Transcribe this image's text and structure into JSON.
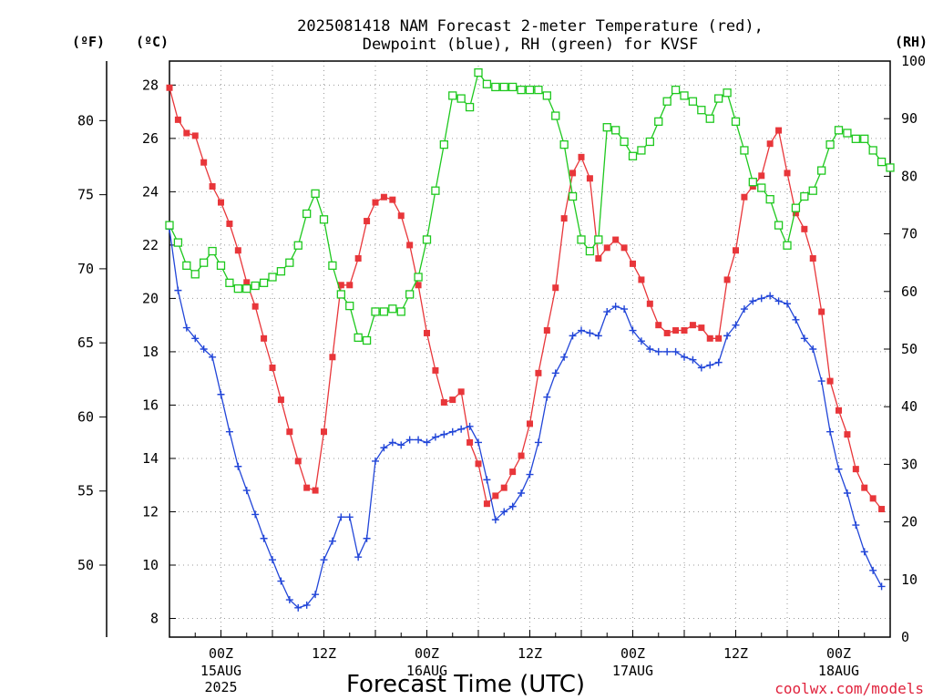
{
  "chart_data": {
    "type": "line",
    "title": "2025081418 NAM Forecast 2-meter Temperature (red),",
    "subtitle": "Dewpoint (blue), RH (green) for KVSF",
    "xlabel": "Forecast Time (UTC)",
    "credit": "coolwx.com/models",
    "units": {
      "fahrenheit": "(ºF)",
      "celsius": "(ºC)",
      "rh": "(RH)"
    },
    "x_range_hours_after_start": [
      0,
      84
    ],
    "x_start": "2025-08-14 18Z",
    "y_celsius_range": [
      7.3,
      28.9
    ],
    "y_rh_range": [
      0,
      100
    ],
    "grid": true,
    "celsius_ticks": [
      8,
      10,
      12,
      14,
      16,
      18,
      20,
      22,
      24,
      26,
      28
    ],
    "fahrenheit_ticks": [
      50,
      55,
      60,
      65,
      70,
      75,
      80
    ],
    "rh_ticks": [
      0,
      10,
      20,
      30,
      40,
      50,
      60,
      70,
      80,
      90,
      100
    ],
    "x_ticks": [
      {
        "hour": 6,
        "label": "00Z",
        "sub": [
          "15AUG",
          "2025"
        ]
      },
      {
        "hour": 18,
        "label": "12Z",
        "sub": []
      },
      {
        "hour": 30,
        "label": "00Z",
        "sub": [
          "16AUG"
        ]
      },
      {
        "hour": 42,
        "label": "12Z",
        "sub": []
      },
      {
        "hour": 54,
        "label": "00Z",
        "sub": [
          "17AUG"
        ]
      },
      {
        "hour": 66,
        "label": "12Z",
        "sub": []
      },
      {
        "hour": 78,
        "label": "00Z",
        "sub": [
          "18AUG"
        ]
      }
    ],
    "series": [
      {
        "key": "temperature",
        "axis": "celsius",
        "color": "#e8363a",
        "marker": "filled-square",
        "points": [
          [
            0,
            27.9
          ],
          [
            1,
            26.7
          ],
          [
            2,
            26.2
          ],
          [
            3,
            26.1
          ],
          [
            4,
            25.1
          ],
          [
            5,
            24.2
          ],
          [
            6,
            23.6
          ],
          [
            7,
            22.8
          ],
          [
            8,
            21.8
          ],
          [
            9,
            20.6
          ],
          [
            10,
            19.7
          ],
          [
            11,
            18.5
          ],
          [
            12,
            17.4
          ],
          [
            13,
            16.2
          ],
          [
            14,
            15.0
          ],
          [
            15,
            13.9
          ],
          [
            16,
            12.9
          ],
          [
            17,
            12.8
          ],
          [
            18,
            15.0
          ],
          [
            19,
            17.8
          ],
          [
            20,
            20.5
          ],
          [
            21,
            20.5
          ],
          [
            22,
            21.5
          ],
          [
            23,
            22.9
          ],
          [
            24,
            23.6
          ],
          [
            25,
            23.8
          ],
          [
            26,
            23.7
          ],
          [
            27,
            23.1
          ],
          [
            28,
            22.0
          ],
          [
            29,
            20.5
          ],
          [
            30,
            18.7
          ],
          [
            31,
            17.3
          ],
          [
            32,
            16.1
          ],
          [
            33,
            16.2
          ],
          [
            34,
            16.5
          ],
          [
            35,
            14.6
          ],
          [
            36,
            13.8
          ],
          [
            37,
            12.3
          ],
          [
            38,
            12.6
          ],
          [
            39,
            12.9
          ],
          [
            40,
            13.5
          ],
          [
            41,
            14.1
          ],
          [
            42,
            15.3
          ],
          [
            43,
            17.2
          ],
          [
            44,
            18.8
          ],
          [
            45,
            20.4
          ],
          [
            46,
            23.0
          ],
          [
            47,
            24.7
          ],
          [
            48,
            25.3
          ],
          [
            49,
            24.5
          ],
          [
            50,
            21.5
          ],
          [
            51,
            21.9
          ],
          [
            52,
            22.2
          ],
          [
            53,
            21.9
          ],
          [
            54,
            21.3
          ],
          [
            55,
            20.7
          ],
          [
            56,
            19.8
          ],
          [
            57,
            19.0
          ],
          [
            58,
            18.7
          ],
          [
            59,
            18.8
          ],
          [
            60,
            18.8
          ],
          [
            61,
            19.0
          ],
          [
            62,
            18.9
          ],
          [
            63,
            18.5
          ],
          [
            64,
            18.5
          ],
          [
            65,
            20.7
          ],
          [
            66,
            21.8
          ],
          [
            67,
            23.8
          ],
          [
            68,
            24.2
          ],
          [
            69,
            24.6
          ],
          [
            70,
            25.8
          ],
          [
            71,
            26.3
          ],
          [
            72,
            24.7
          ],
          [
            73,
            23.2
          ],
          [
            74,
            22.6
          ],
          [
            75,
            21.5
          ],
          [
            76,
            19.5
          ],
          [
            77,
            16.9
          ],
          [
            78,
            15.8
          ],
          [
            79,
            14.9
          ],
          [
            80,
            13.6
          ],
          [
            81,
            12.9
          ],
          [
            82,
            12.5
          ],
          [
            83,
            12.1
          ]
        ]
      },
      {
        "key": "dewpoint",
        "axis": "celsius",
        "color": "#2246d8",
        "marker": "plus",
        "points": [
          [
            0,
            22.6
          ],
          [
            1,
            20.3
          ],
          [
            2,
            18.9
          ],
          [
            3,
            18.5
          ],
          [
            4,
            18.1
          ],
          [
            5,
            17.8
          ],
          [
            6,
            16.4
          ],
          [
            7,
            15.0
          ],
          [
            8,
            13.7
          ],
          [
            9,
            12.8
          ],
          [
            10,
            11.9
          ],
          [
            11,
            11.0
          ],
          [
            12,
            10.2
          ],
          [
            13,
            9.4
          ],
          [
            14,
            8.7
          ],
          [
            15,
            8.4
          ],
          [
            16,
            8.5
          ],
          [
            17,
            8.9
          ],
          [
            18,
            10.2
          ],
          [
            19,
            10.9
          ],
          [
            20,
            11.8
          ],
          [
            21,
            11.8
          ],
          [
            22,
            10.3
          ],
          [
            23,
            11.0
          ],
          [
            24,
            13.9
          ],
          [
            25,
            14.4
          ],
          [
            26,
            14.6
          ],
          [
            27,
            14.5
          ],
          [
            28,
            14.7
          ],
          [
            29,
            14.7
          ],
          [
            30,
            14.6
          ],
          [
            31,
            14.8
          ],
          [
            32,
            14.9
          ],
          [
            33,
            15.0
          ],
          [
            34,
            15.1
          ],
          [
            35,
            15.2
          ],
          [
            36,
            14.6
          ],
          [
            37,
            13.2
          ],
          [
            38,
            11.7
          ],
          [
            39,
            12.0
          ],
          [
            40,
            12.2
          ],
          [
            41,
            12.7
          ],
          [
            42,
            13.4
          ],
          [
            43,
            14.6
          ],
          [
            44,
            16.3
          ],
          [
            45,
            17.2
          ],
          [
            46,
            17.8
          ],
          [
            47,
            18.6
          ],
          [
            48,
            18.8
          ],
          [
            49,
            18.7
          ],
          [
            50,
            18.6
          ],
          [
            51,
            19.5
          ],
          [
            52,
            19.7
          ],
          [
            53,
            19.6
          ],
          [
            54,
            18.8
          ],
          [
            55,
            18.4
          ],
          [
            56,
            18.1
          ],
          [
            57,
            18.0
          ],
          [
            58,
            18.0
          ],
          [
            59,
            18.0
          ],
          [
            60,
            17.8
          ],
          [
            61,
            17.7
          ],
          [
            62,
            17.4
          ],
          [
            63,
            17.5
          ],
          [
            64,
            17.6
          ],
          [
            65,
            18.6
          ],
          [
            66,
            19.0
          ],
          [
            67,
            19.6
          ],
          [
            68,
            19.9
          ],
          [
            69,
            20.0
          ],
          [
            70,
            20.1
          ],
          [
            71,
            19.9
          ],
          [
            72,
            19.8
          ],
          [
            73,
            19.2
          ],
          [
            74,
            18.5
          ],
          [
            75,
            18.1
          ],
          [
            76,
            16.9
          ],
          [
            77,
            15.0
          ],
          [
            78,
            13.6
          ],
          [
            79,
            12.7
          ],
          [
            80,
            11.5
          ],
          [
            81,
            10.5
          ],
          [
            82,
            9.8
          ],
          [
            83,
            9.2
          ]
        ]
      },
      {
        "key": "rh",
        "axis": "rh",
        "color": "#1ec81e",
        "marker": "open-square",
        "points": [
          [
            0,
            71.5
          ],
          [
            1,
            68.5
          ],
          [
            2,
            64.5
          ],
          [
            3,
            63
          ],
          [
            4,
            65
          ],
          [
            5,
            67
          ],
          [
            6,
            64.5
          ],
          [
            7,
            61.5
          ],
          [
            8,
            60.5
          ],
          [
            9,
            60.5
          ],
          [
            10,
            61
          ],
          [
            11,
            61.5
          ],
          [
            12,
            62.5
          ],
          [
            13,
            63.5
          ],
          [
            14,
            65
          ],
          [
            15,
            68
          ],
          [
            16,
            73.5
          ],
          [
            17,
            77
          ],
          [
            18,
            72.5
          ],
          [
            19,
            64.5
          ],
          [
            20,
            59.5
          ],
          [
            21,
            57.5
          ],
          [
            22,
            52
          ],
          [
            23,
            51.5
          ],
          [
            24,
            56.5
          ],
          [
            25,
            56.5
          ],
          [
            26,
            57
          ],
          [
            27,
            56.5
          ],
          [
            28,
            59.5
          ],
          [
            29,
            62.5
          ],
          [
            30,
            69
          ],
          [
            31,
            77.5
          ],
          [
            32,
            85.5
          ],
          [
            33,
            94
          ],
          [
            34,
            93.5
          ],
          [
            35,
            92
          ],
          [
            36,
            98
          ],
          [
            37,
            96
          ],
          [
            38,
            95.5
          ],
          [
            39,
            95.5
          ],
          [
            40,
            95.5
          ],
          [
            41,
            95
          ],
          [
            42,
            95
          ],
          [
            43,
            95
          ],
          [
            44,
            94
          ],
          [
            45,
            90.5
          ],
          [
            46,
            85.5
          ],
          [
            47,
            76.5
          ],
          [
            48,
            69
          ],
          [
            49,
            67
          ],
          [
            50,
            69
          ],
          [
            51,
            88.5
          ],
          [
            52,
            88
          ],
          [
            53,
            86
          ],
          [
            54,
            83.5
          ],
          [
            55,
            84.5
          ],
          [
            56,
            86
          ],
          [
            57,
            89.5
          ],
          [
            58,
            93
          ],
          [
            59,
            95
          ],
          [
            60,
            94
          ],
          [
            61,
            93
          ],
          [
            62,
            91.5
          ],
          [
            63,
            90
          ],
          [
            64,
            93.5
          ],
          [
            65,
            94.5
          ],
          [
            66,
            89.5
          ],
          [
            67,
            84.5
          ],
          [
            68,
            79
          ],
          [
            69,
            78
          ],
          [
            70,
            76
          ],
          [
            71,
            71.5
          ],
          [
            72,
            68
          ],
          [
            73,
            74.5
          ],
          [
            74,
            76.5
          ],
          [
            75,
            77.5
          ],
          [
            76,
            81
          ],
          [
            77,
            85.5
          ],
          [
            78,
            88
          ],
          [
            79,
            87.5
          ],
          [
            80,
            86.5
          ],
          [
            81,
            86.5
          ],
          [
            82,
            84.5
          ],
          [
            83,
            82.5
          ],
          [
            84,
            81.5
          ]
        ]
      }
    ]
  }
}
